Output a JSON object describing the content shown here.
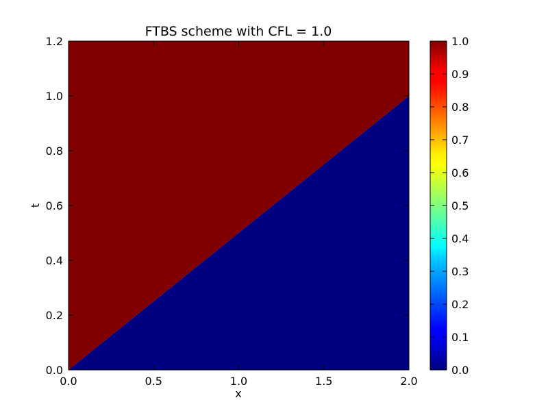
{
  "chart_data": {
    "type": "heatmap",
    "title": "FTBS scheme with CFL = 1.0",
    "xlabel": "x",
    "ylabel": "t",
    "xlim": [
      0.0,
      2.0
    ],
    "ylim": [
      0.0,
      1.2
    ],
    "x_ticks": [
      "0.0",
      "0.5",
      "1.0",
      "1.5",
      "2.0"
    ],
    "y_ticks": [
      "0.0",
      "0.2",
      "0.4",
      "0.6",
      "0.8",
      "1.0",
      "1.2"
    ],
    "colorbar": {
      "colormap": "jet",
      "range": [
        0.0,
        1.0
      ],
      "ticks": [
        "0.0",
        "0.1",
        "0.2",
        "0.3",
        "0.4",
        "0.5",
        "0.6",
        "0.7",
        "0.8",
        "0.9",
        "1.0"
      ]
    },
    "regions": [
      {
        "name": "upper-left",
        "value": 1.0,
        "color": "#800000",
        "boundary": "t > x / 2"
      },
      {
        "name": "lower-right",
        "value": 0.0,
        "color": "#000080",
        "boundary": "t < x / 2"
      }
    ],
    "front": {
      "x": [
        0.0,
        2.0
      ],
      "t": [
        0.0,
        1.0
      ]
    },
    "grid": false
  }
}
